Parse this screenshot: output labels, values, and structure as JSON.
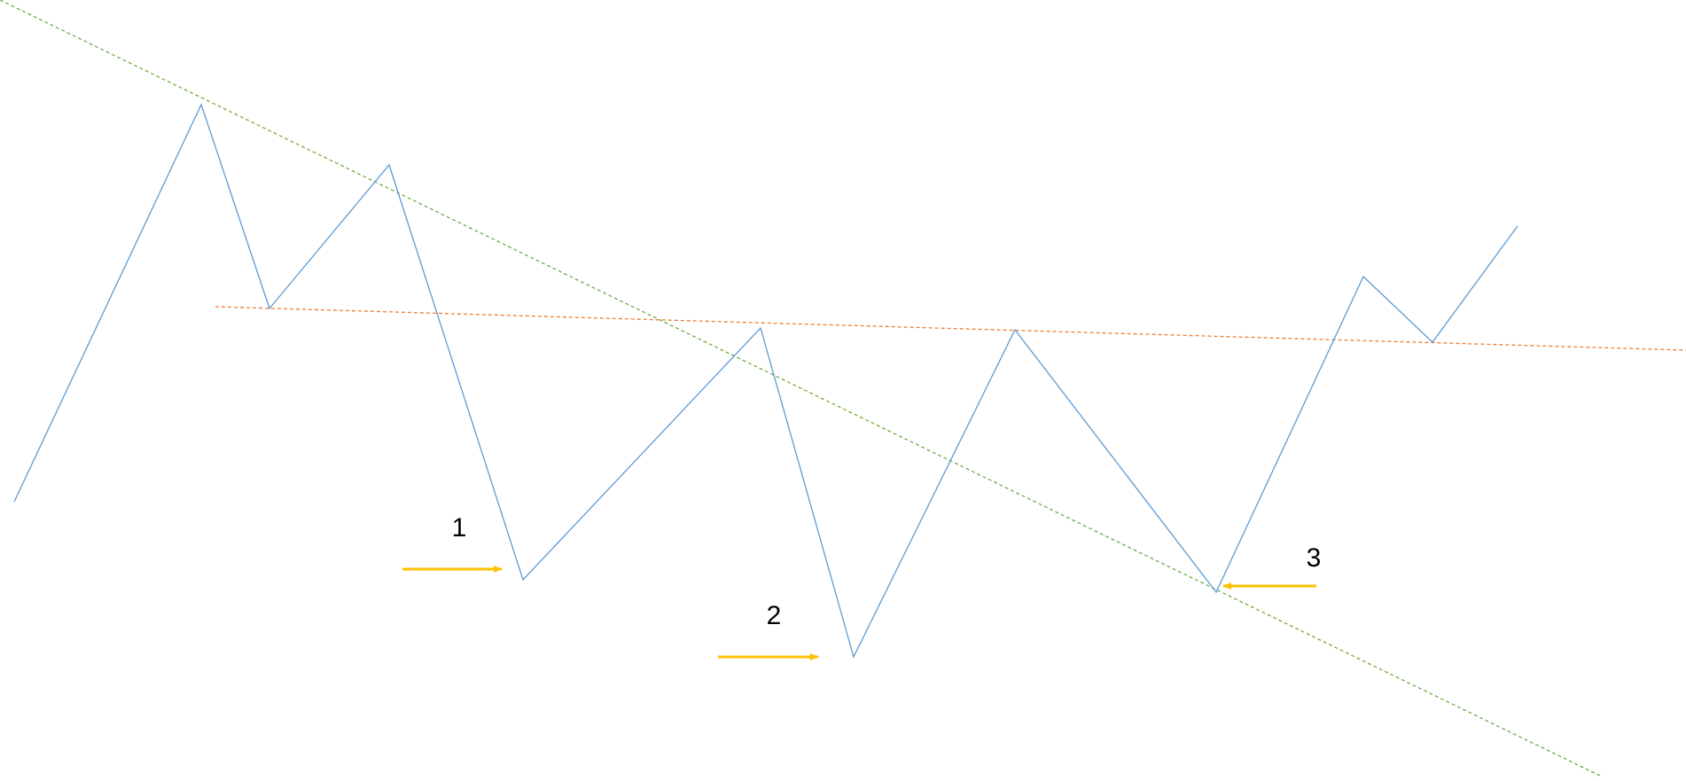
{
  "labels": [
    "1",
    "2",
    "3"
  ]
}
